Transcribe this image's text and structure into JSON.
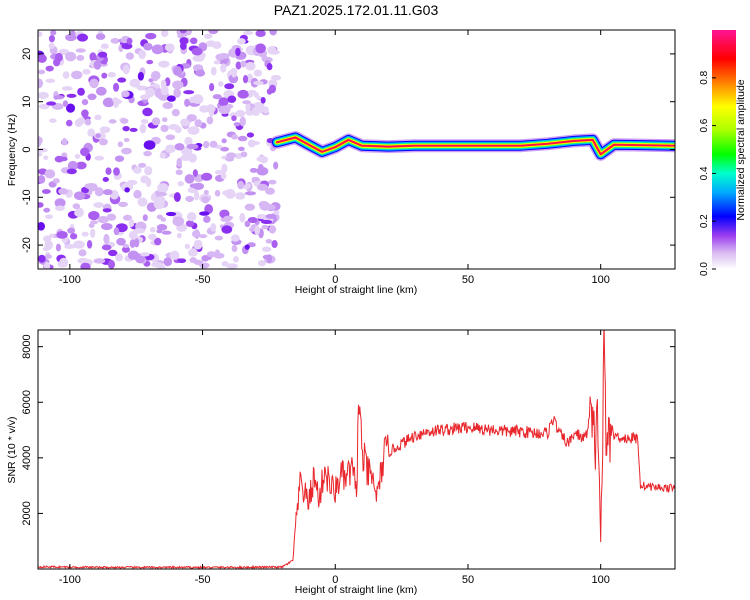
{
  "title": "PAZ1.2025.172.01.11.G03",
  "chart_data": [
    {
      "type": "heatmap",
      "xlabel": "Height of straight line (km)",
      "ylabel": "Frequency (Hz)",
      "xlim": [
        -112,
        128
      ],
      "ylim": [
        -25,
        25
      ],
      "xticks": [
        -100,
        -50,
        0,
        50,
        100
      ],
      "yticks": [
        -20,
        -10,
        0,
        10,
        20
      ],
      "colorbar": {
        "label": "Normalized spectral amplitude",
        "range": [
          0,
          1
        ],
        "ticks": [
          0.0,
          0.2,
          0.4,
          0.6,
          0.8
        ],
        "colormap": [
          "#ffffff",
          "#d9b8f2",
          "#9b3df0",
          "#6a0ff0",
          "#0000ff",
          "#00aaff",
          "#00ffcc",
          "#00ff00",
          "#aaff00",
          "#ffff00",
          "#ff8000",
          "#ff0000",
          "#ff0066",
          "#ff1493"
        ]
      },
      "noise_region_x": [
        -112,
        -22
      ],
      "ridge": {
        "x": [
          -22,
          -15,
          -10,
          -5,
          0,
          5,
          10,
          20,
          30,
          50,
          70,
          80,
          90,
          97,
          100,
          105,
          128
        ],
        "freq": [
          1.5,
          2.5,
          1.0,
          -0.5,
          0.5,
          2.0,
          0.8,
          0.6,
          0.8,
          0.8,
          0.8,
          1.2,
          1.8,
          2.0,
          -1.0,
          1.0,
          0.8
        ]
      }
    },
    {
      "type": "line",
      "xlabel": "Height of straight line (km)",
      "ylabel": "SNR (10 * v/v)",
      "xlim": [
        -112,
        128
      ],
      "ylim": [
        0,
        8600
      ],
      "xticks": [
        -100,
        -50,
        0,
        50,
        100
      ],
      "yticks": [
        2000,
        4000,
        6000,
        8000
      ],
      "color": "#e8262b",
      "series": [
        {
          "x": [
            -112,
            -90,
            -60,
            -40,
            -20,
            -16,
            -15,
            -13,
            -12,
            -10,
            -8,
            -6,
            -4,
            -2,
            0,
            2,
            4,
            6,
            8,
            9,
            10,
            12,
            14,
            16,
            18,
            20,
            25,
            30,
            35,
            40,
            45,
            50,
            55,
            60,
            65,
            70,
            75,
            80,
            82,
            85,
            88,
            90,
            94,
            96,
            98,
            99,
            100,
            101,
            101.5,
            102,
            103,
            105,
            110,
            114,
            115,
            116,
            120,
            128
          ],
          "y": [
            80,
            60,
            60,
            60,
            70,
            300,
            1500,
            3200,
            2800,
            2400,
            3300,
            2500,
            3600,
            3000,
            2800,
            3400,
            3200,
            3600,
            2900,
            6300,
            4200,
            3500,
            3200,
            2600,
            4000,
            4200,
            4500,
            4800,
            4950,
            5000,
            5050,
            5100,
            5050,
            5000,
            4950,
            4950,
            4900,
            4900,
            5400,
            4800,
            4500,
            4900,
            4700,
            5300,
            4500,
            5500,
            1000,
            6000,
            8600,
            3500,
            5200,
            4800,
            4700,
            4700,
            3000,
            3000,
            2950,
            2900
          ]
        }
      ]
    }
  ]
}
